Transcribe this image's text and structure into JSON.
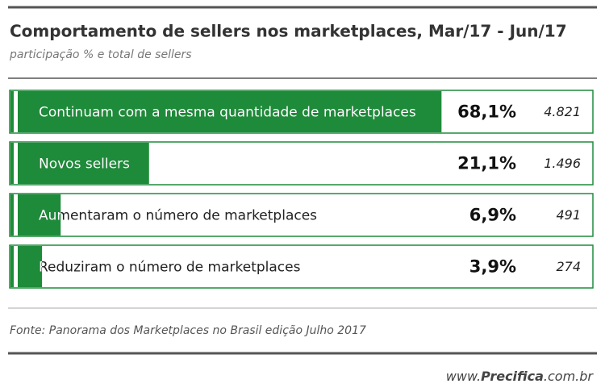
{
  "chart_data": {
    "type": "bar",
    "title": "Comportamento de sellers nos marketplaces, Mar/17 - Jun/17",
    "subtitle": "participação % e total de sellers",
    "categories": [
      "Continuam com a mesma quantidade de marketplaces",
      "Novos sellers",
      "Aumentaram o número de marketplaces",
      "Reduziram o número de marketplaces"
    ],
    "values": [
      68.1,
      21.1,
      6.9,
      3.9
    ],
    "value_labels": [
      "68,1%",
      "21,1%",
      "6,9%",
      "3,9%"
    ],
    "totals": [
      4821,
      1496,
      491,
      274
    ],
    "total_labels": [
      "4.821",
      "1.496",
      "491",
      "274"
    ],
    "xlim": [
      0,
      70
    ],
    "color": "#1e8b3a",
    "source": "Fonte: Panorama dos Marketplaces no Brasil edição Julho 2017",
    "footer": {
      "prefix": "www.",
      "brand": "Precifica",
      "suffix": ".com.br"
    }
  }
}
